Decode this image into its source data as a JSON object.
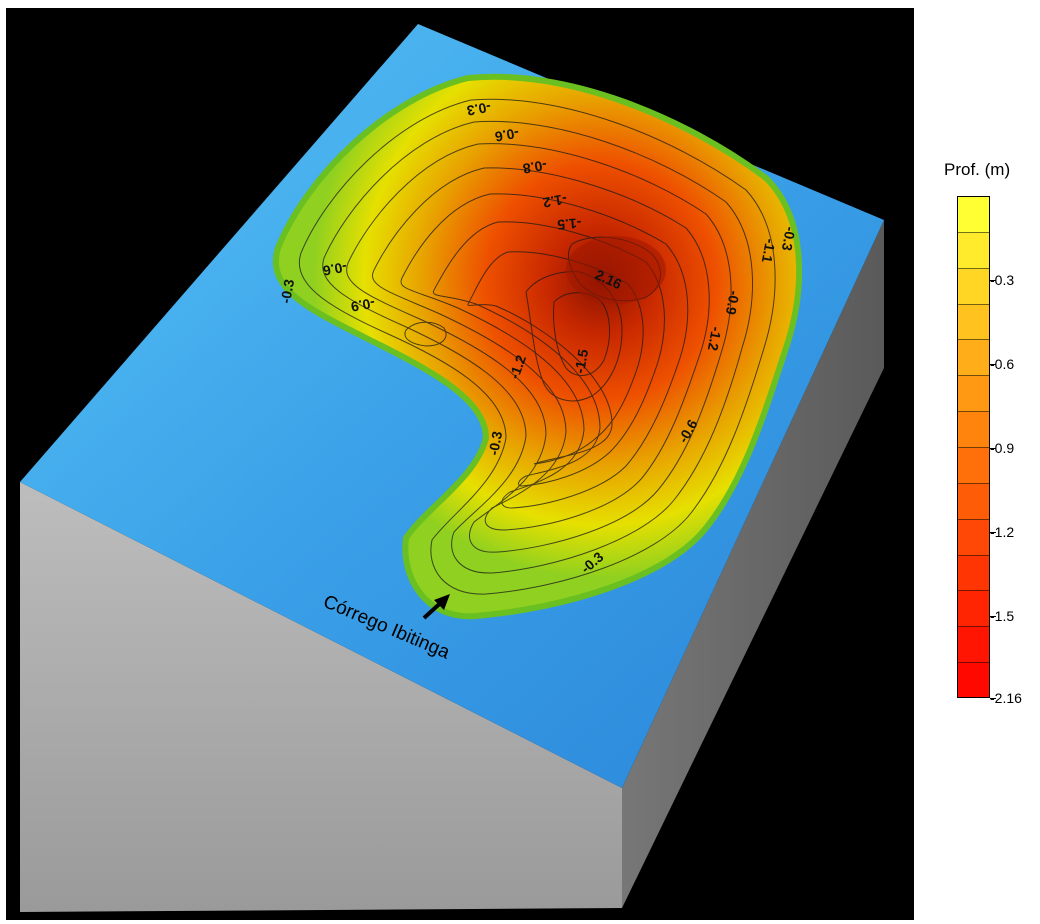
{
  "map": {
    "contour_labels": [
      "-0.3",
      "-0.6",
      "-0.8",
      "-0.6",
      "-0.9",
      "-1.2",
      "-1.5",
      "-2.16",
      "-1.1",
      "-0.9",
      "-1.2",
      "-1.5",
      "-0.6",
      "-0.3",
      "-0.3",
      "-0.3",
      "-0.3",
      "-0.3"
    ],
    "peak_label": "2.16",
    "annotation": "Córrego Ibitinga",
    "colors": {
      "background": "#000000",
      "terrain_shallow": "#3aa0e8",
      "terrain_deep": "#cc2000",
      "box_side": "#a8a8a8"
    }
  },
  "legend": {
    "title": "Prof. (m)",
    "ticks": [
      "-0.3",
      "-0.6",
      "-0.9",
      "-1.2",
      "-1.5",
      "-2.16"
    ],
    "colors": [
      "#ffff33",
      "#ffea2c",
      "#ffd624",
      "#ffc21e",
      "#ffad18",
      "#ff9812",
      "#ff840e",
      "#ff700a",
      "#ff5c07",
      "#ff4805",
      "#ff3603",
      "#ff2502",
      "#ff1501",
      "#ff0800"
    ]
  }
}
